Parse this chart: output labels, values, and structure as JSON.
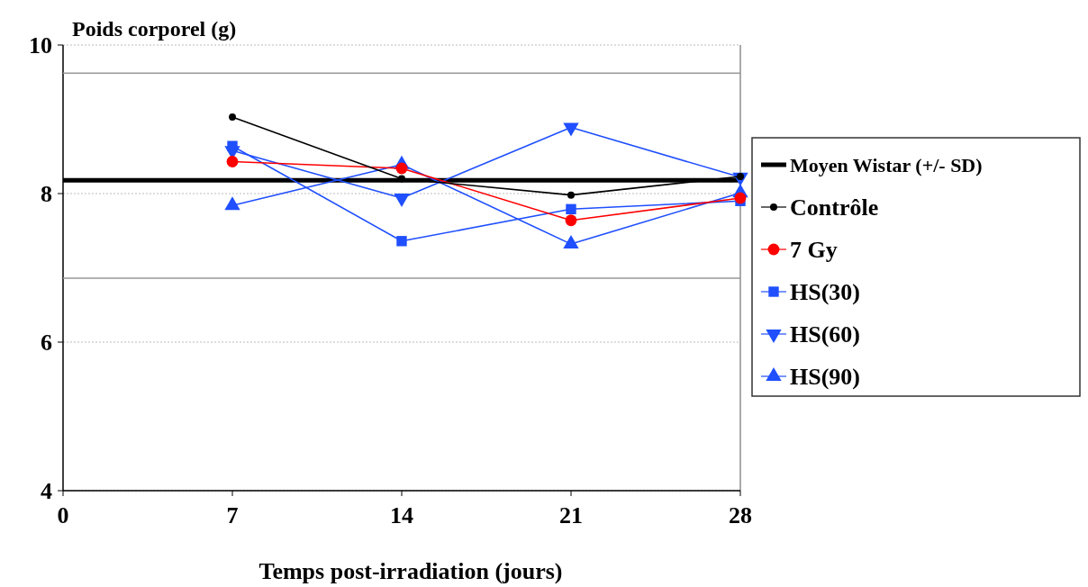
{
  "chart_data": {
    "type": "line",
    "ylabel": "Poids corporel (g)",
    "xlabel": "Temps post-irradiation (jours)",
    "x": [
      7,
      14,
      21,
      28
    ],
    "xlim": [
      0,
      28
    ],
    "xticks": [
      0,
      7,
      14,
      21,
      28
    ],
    "ylim": [
      4,
      10
    ],
    "yticks": [
      4,
      6,
      8,
      10
    ],
    "grid": "y",
    "legend": "right",
    "ref_lines": [
      {
        "axis": "y",
        "value": 8.18,
        "label": "Moyen Wistar (+/- SD)",
        "color": "#000000"
      },
      {
        "axis": "y",
        "value": 9.62,
        "label": null,
        "color": "#999999"
      },
      {
        "axis": "y",
        "value": 6.86,
        "label": null,
        "color": "#999999"
      }
    ],
    "series": [
      {
        "name": "Contrôle",
        "color": "#000000",
        "marker": "circle",
        "values": [
          9.03,
          8.2,
          7.98,
          8.23
        ]
      },
      {
        "name": "7 Gy",
        "color": "#ff0000",
        "marker": "circle",
        "values": [
          8.43,
          8.34,
          7.64,
          7.94
        ]
      },
      {
        "name": "HS(30)",
        "color": "#1f4fff",
        "marker": "square",
        "values": [
          8.64,
          7.36,
          7.79,
          7.9
        ]
      },
      {
        "name": "HS(60)",
        "color": "#1f4fff",
        "marker": "triangle-down",
        "values": [
          8.58,
          7.94,
          8.89,
          8.22
        ]
      },
      {
        "name": "HS(90)",
        "color": "#1f4fff",
        "marker": "triangle",
        "values": [
          7.84,
          8.39,
          7.32,
          8.01
        ]
      }
    ]
  }
}
